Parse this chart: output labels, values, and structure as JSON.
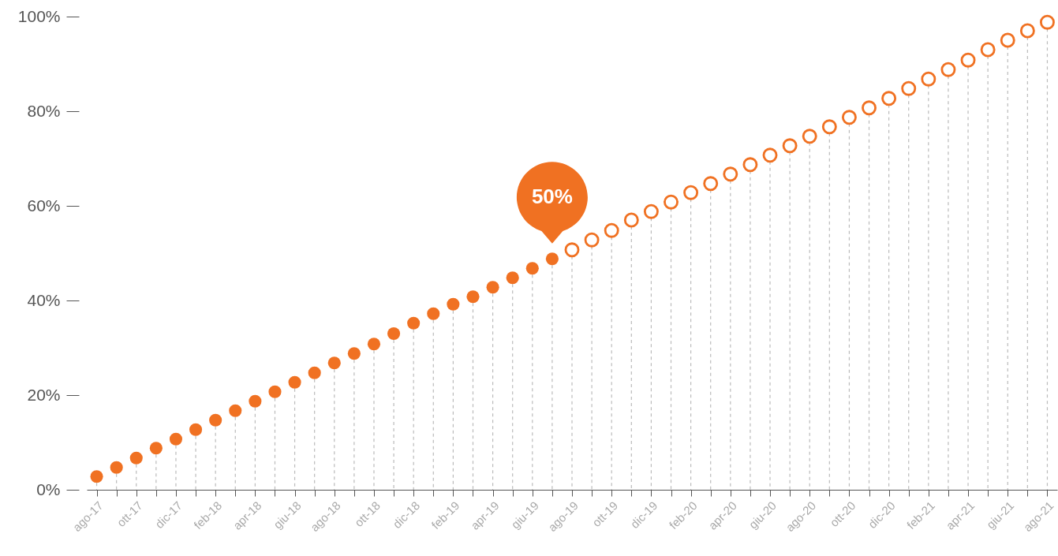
{
  "chart_data": {
    "type": "lollipop",
    "categories": [
      "ago-17",
      null,
      "ott-17",
      null,
      "dic-17",
      null,
      "feb-18",
      null,
      "apr-18",
      null,
      "giu-18",
      null,
      "ago-18",
      null,
      "ott-18",
      null,
      "dic-18",
      null,
      "feb-19",
      null,
      "apr-19",
      null,
      "giu-19",
      null,
      "ago-19",
      null,
      "ott-19",
      null,
      "dic-19",
      null,
      "feb-20",
      null,
      "apr-20",
      null,
      "giu-20",
      null,
      "ago-20",
      null,
      "ott-20",
      null,
      "dic-20",
      null,
      "feb-21",
      null,
      "apr-21",
      null,
      "giu-21",
      null,
      "ago-21"
    ],
    "series": [
      {
        "color": "#f07122",
        "values": [
          2.8,
          4.7,
          6.7,
          8.8,
          10.7,
          12.7,
          14.7,
          16.7,
          18.7,
          20.7,
          22.7,
          24.7,
          26.8,
          28.8,
          30.8,
          33.0,
          35.2,
          37.2,
          39.2,
          40.8,
          42.8,
          44.8,
          46.8,
          48.8,
          null,
          null,
          null,
          null,
          null,
          null,
          null,
          null,
          null,
          null,
          null,
          null,
          null,
          null,
          null,
          null,
          null,
          null,
          null,
          null,
          null,
          null,
          null,
          null,
          null
        ]
      },
      {
        "color": "#f07122",
        "values": [
          null,
          null,
          null,
          null,
          null,
          null,
          null,
          null,
          null,
          null,
          null,
          null,
          null,
          null,
          null,
          null,
          null,
          null,
          null,
          null,
          null,
          null,
          null,
          null,
          50.7,
          52.8,
          54.8,
          57.0,
          58.8,
          60.8,
          62.8,
          64.7,
          66.7,
          68.7,
          70.7,
          72.7,
          74.7,
          76.7,
          78.7,
          80.7,
          82.7,
          84.8,
          86.8,
          88.8,
          90.8,
          93.0,
          95.0,
          97.0,
          98.8
        ]
      }
    ],
    "ylim": [
      0,
      100
    ],
    "yticks": [
      {
        "value": 0,
        "label": "0%"
      },
      {
        "value": 20,
        "label": "20%"
      },
      {
        "value": 40,
        "label": "40%"
      },
      {
        "value": 60,
        "label": "60%"
      },
      {
        "value": 80,
        "label": "80%"
      },
      {
        "value": 100,
        "label": "100%"
      }
    ],
    "annotations": [
      "50%"
    ],
    "marker": "circle",
    "line_style": "dashed"
  }
}
